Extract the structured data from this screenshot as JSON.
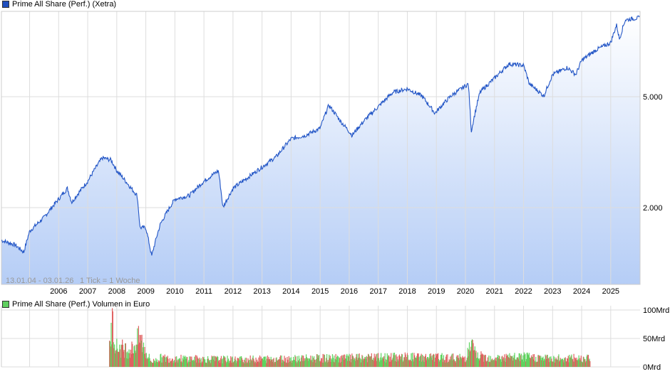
{
  "chart_data": [
    {
      "type": "line",
      "title": "Prime All Share (Perf.) (Xetra)",
      "legend_color": "#1f4fbf",
      "line_color": "#2356c6",
      "scale": "log",
      "ylim": [
        1061,
        10115
      ],
      "y_ticks": [
        {
          "v": 2000,
          "label": "2.000"
        },
        {
          "v": 5000,
          "label": "5.000"
        }
      ],
      "x_range": [
        2004.03,
        2026.01
      ],
      "x_ticks": [
        "2006",
        "2007",
        "2008",
        "2009",
        "2010",
        "2011",
        "2012",
        "2013",
        "2014",
        "2015",
        "2016",
        "2017",
        "2018",
        "2019",
        "2020",
        "2021",
        "2022",
        "2023",
        "2024",
        "2025"
      ],
      "range_label": "13.01.04 - 03.01.26",
      "tick_label": "1 Tick = 1 Woche",
      "grid": true,
      "x": [
        2004.03,
        2004.5,
        2004.8,
        2005.0,
        2005.5,
        2006.0,
        2006.3,
        2006.45,
        2007.0,
        2007.5,
        2007.8,
        2008.0,
        2008.5,
        2008.7,
        2008.8,
        2009.0,
        2009.2,
        2009.5,
        2010.0,
        2010.5,
        2011.0,
        2011.5,
        2011.65,
        2012.0,
        2012.5,
        2013.0,
        2013.5,
        2014.0,
        2014.5,
        2015.0,
        2015.3,
        2015.7,
        2016.1,
        2016.5,
        2017.0,
        2017.5,
        2018.0,
        2018.5,
        2018.95,
        2019.5,
        2020.1,
        2020.2,
        2020.5,
        2021.0,
        2021.5,
        2022.0,
        2022.2,
        2022.7,
        2023.0,
        2023.5,
        2023.8,
        2024.0,
        2024.5,
        2025.0,
        2025.2,
        2025.3,
        2025.5,
        2026.0
      ],
      "y": [
        1527,
        1471,
        1384,
        1645,
        1846,
        2147,
        2345,
        2088,
        2488,
        3018,
        2966,
        2715,
        2345,
        2211,
        1695,
        1695,
        1338,
        1745,
        2147,
        2211,
        2488,
        2715,
        2000,
        2345,
        2561,
        2796,
        3054,
        3531,
        3636,
        3851,
        4660,
        4085,
        3636,
        4085,
        4604,
        5180,
        5338,
        5030,
        4362,
        5030,
        5556,
        3749,
        5180,
        5827,
        6552,
        6473,
        5556,
        5030,
        6000,
        6362,
        6000,
        6748,
        7364,
        7809,
        9041,
        8040,
        9427,
        9598
      ]
    },
    {
      "type": "bar",
      "title": "Prime All Share (Perf.) Volumen in Euro",
      "legend_color": "#5fcf5f",
      "up_color": "#5fd35f",
      "down_color": "#e06060",
      "ylim": [
        0,
        100
      ],
      "y_ticks": [
        {
          "v": 0,
          "label": "0Mrd"
        },
        {
          "v": 50,
          "label": "50Mrd"
        },
        {
          "v": 100,
          "label": "100Mrd"
        }
      ],
      "x": [
        2007.75,
        2007.85,
        2008.0,
        2008.5,
        2008.8,
        2009.0,
        2009.2,
        2009.5,
        2010.0,
        2012.0,
        2014.0,
        2016.0,
        2018.0,
        2020.0,
        2020.2,
        2020.4,
        2021.0,
        2022.0,
        2023.0,
        2024.0,
        2024.3
      ],
      "y": [
        45,
        90,
        40,
        35,
        60,
        30,
        10,
        18,
        17,
        15,
        17,
        18,
        20,
        18,
        45,
        22,
        18,
        20,
        17,
        18,
        20
      ]
    }
  ]
}
